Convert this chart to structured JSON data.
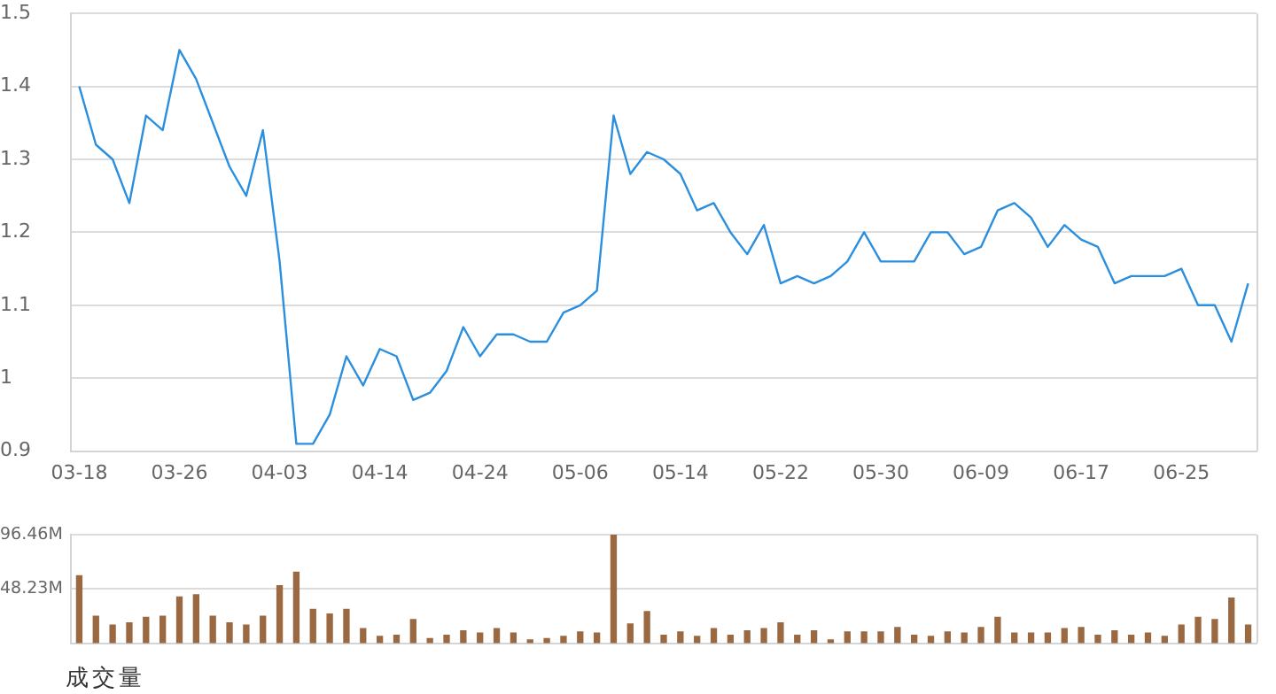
{
  "chart_data": [
    {
      "type": "line",
      "categories": [
        "03-18",
        null,
        null,
        null,
        null,
        null,
        "03-26",
        null,
        null,
        null,
        null,
        null,
        "04-03",
        null,
        null,
        null,
        null,
        null,
        "04-14",
        null,
        null,
        null,
        null,
        null,
        "04-24",
        null,
        null,
        null,
        null,
        null,
        "05-06",
        null,
        null,
        null,
        null,
        null,
        "05-14",
        null,
        null,
        null,
        null,
        null,
        "05-22",
        null,
        null,
        null,
        null,
        null,
        "05-30",
        null,
        null,
        null,
        null,
        null,
        "06-09",
        null,
        null,
        null,
        null,
        null,
        "06-17",
        null,
        null,
        null,
        null,
        null,
        "06-25",
        null,
        null,
        null,
        null
      ],
      "values": [
        1.4,
        1.32,
        1.3,
        1.24,
        1.36,
        1.34,
        1.45,
        1.41,
        1.35,
        1.29,
        1.25,
        1.34,
        1.16,
        0.91,
        0.91,
        0.95,
        1.03,
        0.99,
        1.04,
        1.03,
        0.97,
        0.98,
        1.01,
        1.07,
        1.03,
        1.06,
        1.06,
        1.05,
        1.05,
        1.09,
        1.1,
        1.12,
        1.36,
        1.28,
        1.31,
        1.3,
        1.28,
        1.23,
        1.24,
        1.2,
        1.17,
        1.21,
        1.13,
        1.14,
        1.13,
        1.14,
        1.16,
        1.2,
        1.16,
        1.16,
        1.16,
        1.2,
        1.2,
        1.17,
        1.18,
        1.23,
        1.24,
        1.22,
        1.18,
        1.21,
        1.19,
        1.18,
        1.13,
        1.14,
        1.14,
        1.14,
        1.15,
        1.1,
        1.1,
        1.05,
        1.13
      ],
      "color": "#2b8fdf",
      "ylim": [
        0.9,
        1.5
      ],
      "yticks": [
        0.9,
        1,
        1.1,
        1.2,
        1.3,
        1.4,
        1.5
      ],
      "grid": "y",
      "marker": "none"
    },
    {
      "type": "bar",
      "xlabel": "成交量",
      "tick_labels": "y",
      "categories": [
        null,
        null,
        null,
        null,
        null,
        null,
        null,
        null,
        null,
        null,
        null,
        null,
        null,
        null,
        null,
        null,
        null,
        null,
        null,
        null,
        null,
        null,
        null,
        null,
        null,
        null,
        null,
        null,
        null,
        null,
        null,
        null,
        null,
        null,
        null,
        null,
        null,
        null,
        null,
        null,
        null,
        null,
        null,
        null,
        null,
        null,
        null,
        null,
        null,
        null,
        null,
        null,
        null,
        null,
        null,
        null,
        null,
        null,
        null,
        null,
        null,
        null,
        null,
        null,
        null,
        null,
        null,
        null,
        null,
        null,
        null
      ],
      "values": [
        60,
        24,
        16,
        18,
        23,
        24,
        41,
        43,
        24,
        18,
        16,
        24,
        51,
        63,
        30,
        26,
        30,
        13,
        6,
        7,
        21,
        4,
        7,
        11,
        9,
        13,
        9,
        3,
        4,
        6,
        10,
        9,
        96.46,
        17,
        28,
        7,
        10,
        6,
        13,
        7,
        11,
        13,
        18,
        7,
        11,
        3,
        10,
        10,
        10,
        14,
        7,
        6,
        10,
        9,
        14,
        23,
        9,
        9,
        9,
        13,
        14,
        7,
        11,
        7,
        9,
        6,
        16,
        23,
        21,
        40,
        16
      ],
      "color": "#9a6942",
      "ylim": [
        0,
        96.46
      ],
      "yticks": [
        {
          "value": 48.23,
          "label": "48.23M"
        },
        {
          "value": 96.46,
          "label": "96.46M"
        }
      ],
      "grid": "y"
    }
  ]
}
